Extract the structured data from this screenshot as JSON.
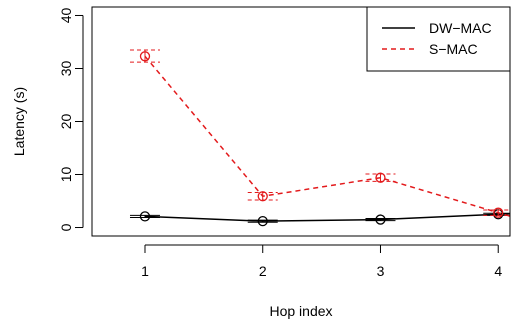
{
  "chart_data": {
    "type": "line",
    "xlabel": "Hop index",
    "ylabel": "Latency (s)",
    "x": [
      1,
      2,
      3,
      4
    ],
    "xlim": [
      0.55,
      4.1
    ],
    "ylim": [
      -1.6,
      41.6
    ],
    "xticks": [
      1,
      2,
      3,
      4
    ],
    "yticks": [
      0,
      10,
      20,
      30,
      40
    ],
    "grid": false,
    "legend_position": "top-right",
    "series": [
      {
        "name": "DW−MAC",
        "values": [
          2.1,
          1.2,
          1.5,
          2.5
        ],
        "error_low": [
          1.9,
          1.0,
          1.3,
          2.3
        ],
        "error_high": [
          2.3,
          1.4,
          1.7,
          2.7
        ],
        "color": "#000000",
        "dash": "solid",
        "marker": "circle"
      },
      {
        "name": "S−MAC",
        "values": [
          32.3,
          5.9,
          9.4,
          2.8
        ],
        "error_low": [
          31.2,
          5.2,
          8.7,
          2.3
        ],
        "error_high": [
          33.5,
          6.6,
          10.1,
          3.3
        ],
        "color": "#e31a1c",
        "dash": "dashed",
        "marker": "circle"
      }
    ]
  }
}
